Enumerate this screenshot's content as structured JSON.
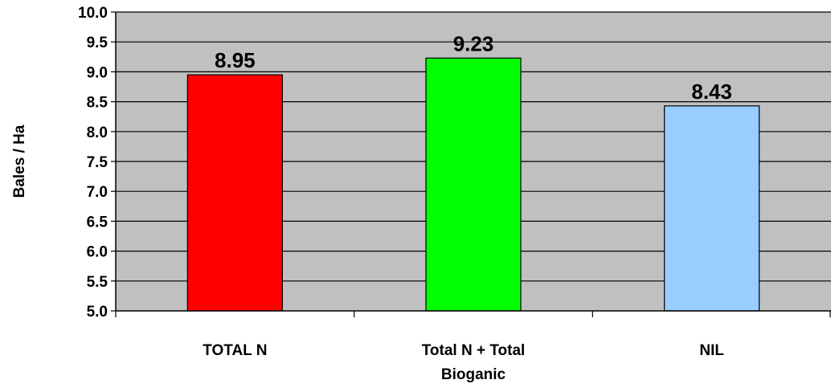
{
  "chart_data": {
    "type": "bar",
    "title": "",
    "xlabel": "",
    "ylabel": "Bales / Ha",
    "ylim": [
      5.0,
      10.0
    ],
    "ytick_step": 0.5,
    "yticks": [
      "5.0",
      "5.5",
      "6.0",
      "6.5",
      "7.0",
      "7.5",
      "8.0",
      "8.5",
      "9.0",
      "9.5",
      "10.0"
    ],
    "grid": true,
    "legend": "none",
    "plot_background": "#c0c0c0",
    "categories": [
      [
        "TOTAL N"
      ],
      [
        "Total N + Total",
        "Bioganic"
      ],
      [
        "NIL"
      ]
    ],
    "values": [
      8.95,
      9.23,
      8.43
    ],
    "data_labels": [
      "8.95",
      "9.23",
      "8.43"
    ],
    "colors": [
      "#ff0000",
      "#00ff00",
      "#99ccff"
    ]
  }
}
